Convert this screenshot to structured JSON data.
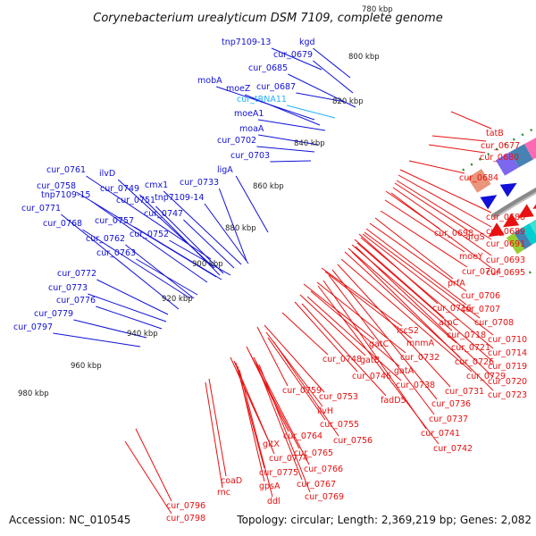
{
  "title": "Corynebacterium urealyticum DSM 7109, complete genome",
  "footer": {
    "accession": "Accession: NC_010545",
    "summary": "Topology: circular; Length: 2,369,219 bp; Genes: 2,082"
  },
  "colors": {
    "forward": "#1010d8",
    "reverse": "#e81010",
    "rna": "#20b0ff",
    "backbone": "#8a8a8a",
    "ticks": "#2e8b2e"
  },
  "ticks": [
    {
      "label": "780 kbp"
    },
    {
      "label": "800 kbp"
    },
    {
      "label": "820 kbp"
    },
    {
      "label": "840 kbp"
    },
    {
      "label": "860 kbp"
    },
    {
      "label": "880 kbp"
    },
    {
      "label": "900 kbp"
    },
    {
      "label": "920 kbp"
    },
    {
      "label": "940 kbp"
    },
    {
      "label": "960 kbp"
    },
    {
      "label": "980 kbp"
    }
  ],
  "forward_genes": [
    {
      "label": "tnp7109-13"
    },
    {
      "label": "kgd"
    },
    {
      "label": "cur_0679"
    },
    {
      "label": "cur_0685"
    },
    {
      "label": "mobA"
    },
    {
      "label": "moeZ"
    },
    {
      "label": "cur_0687"
    },
    {
      "label": "cur_tRNA11",
      "rna": true
    },
    {
      "label": "moeA1"
    },
    {
      "label": "moaA"
    },
    {
      "label": "cur_0702"
    },
    {
      "label": "cur_0703"
    },
    {
      "label": "ligA"
    },
    {
      "label": "cur_0761"
    },
    {
      "label": "ilvD"
    },
    {
      "label": "cur_0758"
    },
    {
      "label": "cur_0749"
    },
    {
      "label": "cmx1"
    },
    {
      "label": "cur_0733"
    },
    {
      "label": "tnp7109-15"
    },
    {
      "label": "cur_0751"
    },
    {
      "label": "tnp7109-14"
    },
    {
      "label": "cur_0771"
    },
    {
      "label": "cur_0747"
    },
    {
      "label": "cur_0768"
    },
    {
      "label": "cur_0757"
    },
    {
      "label": "cur_0762"
    },
    {
      "label": "cur_0752"
    },
    {
      "label": "cur_0763"
    },
    {
      "label": "cur_0772"
    },
    {
      "label": "cur_0773"
    },
    {
      "label": "cur_0776"
    },
    {
      "label": "cur_0779"
    },
    {
      "label": "cur_0797"
    }
  ],
  "reverse_genes": [
    {
      "label": "tatB"
    },
    {
      "label": "cur_0677"
    },
    {
      "label": "cur_0680"
    },
    {
      "label": "cur_0684"
    },
    {
      "label": "cur_0688"
    },
    {
      "label": "cur_0689"
    },
    {
      "label": "cur_0698"
    },
    {
      "label": "argS"
    },
    {
      "label": "cur_0691"
    },
    {
      "label": "moeY"
    },
    {
      "label": "cur_0693"
    },
    {
      "label": "cur_0704"
    },
    {
      "label": "cur_0695"
    },
    {
      "label": "prfA"
    },
    {
      "label": "cur_0706"
    },
    {
      "label": "cur_0716"
    },
    {
      "label": "cur_0707"
    },
    {
      "label": "atpC"
    },
    {
      "label": "cur_0708"
    },
    {
      "label": "iscS2"
    },
    {
      "label": "cur_0718"
    },
    {
      "label": "mnmA"
    },
    {
      "label": "cur_0710"
    },
    {
      "label": "cur_0721"
    },
    {
      "label": "gatC"
    },
    {
      "label": "cur_0714"
    },
    {
      "label": "cur_0732"
    },
    {
      "label": "cur_0726"
    },
    {
      "label": "cur_0719"
    },
    {
      "label": "cur_0748"
    },
    {
      "label": "gatB"
    },
    {
      "label": "gatA"
    },
    {
      "label": "cur_0729"
    },
    {
      "label": "cur_0720"
    },
    {
      "label": "cur_0746"
    },
    {
      "label": "cur_0738"
    },
    {
      "label": "cur_0731"
    },
    {
      "label": "cur_0723"
    },
    {
      "label": "fadD5"
    },
    {
      "label": "cur_0736"
    },
    {
      "label": "cur_0753"
    },
    {
      "label": "cur_0759"
    },
    {
      "label": "ilvH"
    },
    {
      "label": "cur_0737"
    },
    {
      "label": "cur_0755"
    },
    {
      "label": "cur_0741"
    },
    {
      "label": "cur_0764"
    },
    {
      "label": "cur_0756"
    },
    {
      "label": "cur_0742"
    },
    {
      "label": "gltX"
    },
    {
      "label": "cur_0765"
    },
    {
      "label": "cur_0774"
    },
    {
      "label": "cur_0766"
    },
    {
      "label": "cur_0775"
    },
    {
      "label": "coaD"
    },
    {
      "label": "cur_0767"
    },
    {
      "label": "gpsA"
    },
    {
      "label": "rnc"
    },
    {
      "label": "cur_0769"
    },
    {
      "label": "ddl"
    },
    {
      "label": "cur_0796"
    },
    {
      "label": "cur_0798"
    }
  ]
}
